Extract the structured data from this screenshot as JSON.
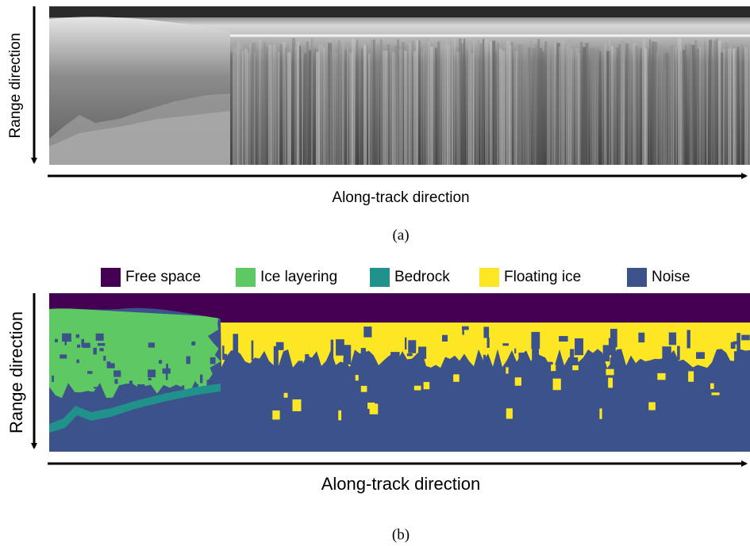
{
  "panel_a": {
    "y_axis_label": "Range direction",
    "x_axis_label": "Along-track direction",
    "caption": "(a)"
  },
  "panel_b": {
    "legend": [
      {
        "label": "Free space",
        "color": "#440154"
      },
      {
        "label": "Ice layering",
        "color": "#5ec962"
      },
      {
        "label": "Bedrock",
        "color": "#21918c"
      },
      {
        "label": "Floating ice",
        "color": "#fde725"
      },
      {
        "label": "Noise",
        "color": "#3b528b"
      }
    ],
    "y_axis_label": "Range direction",
    "x_axis_label": "Along-track direction",
    "caption": "(b)"
  }
}
